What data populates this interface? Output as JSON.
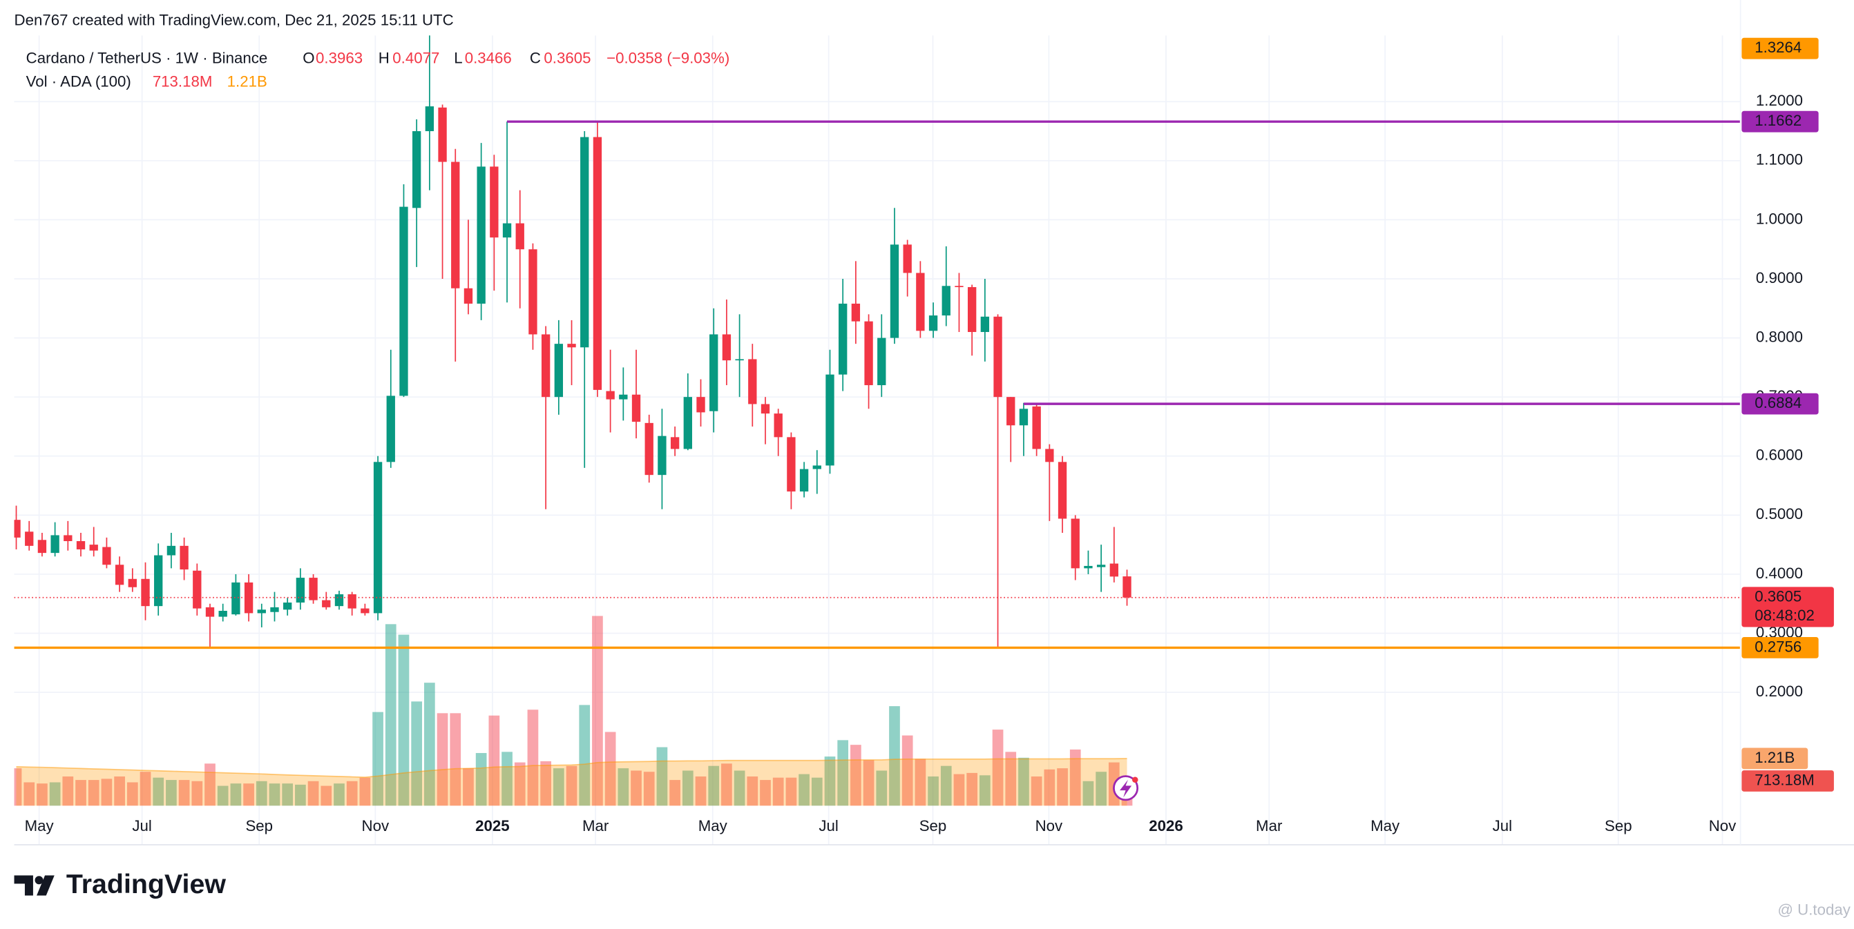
{
  "header": "Den767 created with TradingView.com, Dec 21, 2025 15:11 UTC",
  "brand": "TradingView",
  "watermark": "@ U.today",
  "chart_data": {
    "type": "candlestick",
    "symbol": "Cardano / TetherUS · 1W · Binance",
    "legend_keys": {
      "open": "O",
      "high": "H",
      "low": "L",
      "close": "C"
    },
    "change": "−0.0358 (−9.03%)",
    "volume_name": "Vol · ADA (100)",
    "open": [
      0.492,
      0.472,
      0.458,
      0.436,
      0.466,
      0.456,
      0.45,
      0.446,
      0.416,
      0.392,
      0.392,
      0.346,
      0.432,
      0.448,
      0.406,
      0.344,
      0.328,
      0.332,
      0.386,
      0.334,
      0.336,
      0.34,
      0.352,
      0.394,
      0.356,
      0.346,
      0.366,
      0.342,
      0.334,
      0.59,
      0.702,
      1.02,
      1.15,
      1.19,
      1.098,
      0.884,
      0.858,
      1.09,
      0.97,
      0.994,
      0.95,
      0.806,
      0.7,
      0.79,
      0.784,
      1.14,
      0.71,
      0.696,
      0.704,
      0.656,
      0.568,
      0.632,
      0.612,
      0.7,
      0.676,
      0.806,
      0.762,
      0.764,
      0.688,
      0.672,
      0.632,
      0.54,
      0.578,
      0.584,
      0.738,
      0.858,
      0.828,
      0.72,
      0.8,
      0.958,
      0.91,
      0.812,
      0.838,
      0.888,
      0.886,
      0.81,
      0.836,
      0.7,
      0.652,
      0.684,
      0.612,
      0.59,
      0.494,
      0.41,
      0.412,
      0.418,
      0.3963
    ],
    "high": [
      0.516,
      0.49,
      0.47,
      0.488,
      0.49,
      0.47,
      0.48,
      0.462,
      0.43,
      0.41,
      0.42,
      0.452,
      0.47,
      0.462,
      0.418,
      0.35,
      0.35,
      0.4,
      0.4,
      0.35,
      0.37,
      0.36,
      0.41,
      0.4,
      0.37,
      0.372,
      0.37,
      0.35,
      0.6,
      0.78,
      1.06,
      1.17,
      1.3264,
      1.195,
      1.12,
      1.0,
      1.13,
      1.11,
      1.1662,
      1.05,
      0.96,
      0.82,
      0.83,
      0.83,
      1.15,
      1.168,
      0.78,
      0.75,
      0.78,
      0.67,
      0.68,
      0.65,
      0.74,
      0.73,
      0.85,
      0.865,
      0.84,
      0.79,
      0.7,
      0.68,
      0.64,
      0.59,
      0.61,
      0.78,
      0.9,
      0.93,
      0.84,
      0.84,
      1.02,
      0.966,
      0.93,
      0.86,
      0.955,
      0.91,
      0.89,
      0.9,
      0.84,
      0.7,
      0.69,
      0.69,
      0.62,
      0.6,
      0.5,
      0.44,
      0.45,
      0.48,
      0.4077
    ],
    "low": [
      0.442,
      0.44,
      0.43,
      0.43,
      0.44,
      0.43,
      0.43,
      0.41,
      0.37,
      0.37,
      0.322,
      0.33,
      0.41,
      0.39,
      0.33,
      0.276,
      0.32,
      0.33,
      0.32,
      0.31,
      0.32,
      0.33,
      0.34,
      0.35,
      0.34,
      0.34,
      0.33,
      0.33,
      0.322,
      0.58,
      0.7,
      0.92,
      1.05,
      0.9,
      0.76,
      0.84,
      0.83,
      0.88,
      0.86,
      0.85,
      0.78,
      0.51,
      0.67,
      0.72,
      0.58,
      0.7,
      0.64,
      0.66,
      0.63,
      0.555,
      0.51,
      0.6,
      0.61,
      0.65,
      0.64,
      0.72,
      0.7,
      0.65,
      0.62,
      0.6,
      0.51,
      0.53,
      0.536,
      0.57,
      0.71,
      0.79,
      0.68,
      0.7,
      0.79,
      0.87,
      0.8,
      0.8,
      0.82,
      0.81,
      0.77,
      0.76,
      0.2756,
      0.59,
      0.6,
      0.6,
      0.49,
      0.47,
      0.39,
      0.4,
      0.37,
      0.386,
      0.3466
    ],
    "close": [
      0.462,
      0.448,
      0.436,
      0.466,
      0.456,
      0.442,
      0.44,
      0.416,
      0.382,
      0.378,
      0.346,
      0.432,
      0.448,
      0.408,
      0.342,
      0.328,
      0.338,
      0.386,
      0.334,
      0.34,
      0.344,
      0.352,
      0.394,
      0.356,
      0.344,
      0.366,
      0.342,
      0.334,
      0.59,
      0.702,
      1.022,
      1.15,
      1.192,
      1.098,
      0.884,
      0.858,
      1.09,
      0.97,
      0.994,
      0.95,
      0.806,
      0.7,
      0.79,
      0.784,
      1.14,
      0.712,
      0.696,
      0.704,
      0.658,
      0.568,
      0.634,
      0.612,
      0.7,
      0.674,
      0.806,
      0.762,
      0.764,
      0.688,
      0.672,
      0.632,
      0.54,
      0.578,
      0.584,
      0.738,
      0.858,
      0.828,
      0.72,
      0.8,
      0.958,
      0.91,
      0.812,
      0.838,
      0.888,
      0.886,
      0.81,
      0.836,
      0.7,
      0.652,
      0.68,
      0.612,
      0.59,
      0.494,
      0.41,
      0.414,
      0.416,
      0.396,
      0.3605
    ],
    "volume": [
      960000000,
      600000000,
      570000000,
      600000000,
      750000000,
      660000000,
      660000000,
      690000000,
      750000000,
      600000000,
      870000000,
      720000000,
      660000000,
      660000000,
      630000000,
      1080000000,
      510000000,
      570000000,
      570000000,
      630000000,
      570000000,
      570000000,
      540000000,
      630000000,
      510000000,
      570000000,
      630000000,
      720000000,
      2400000000,
      4650000000,
      4380000000,
      2670000000,
      3150000000,
      2370000000,
      2370000000,
      960000000,
      1350000000,
      2310000000,
      1380000000,
      1110000000,
      2460000000,
      1140000000,
      960000000,
      1020000000,
      2580000000,
      4860000000,
      1890000000,
      960000000,
      900000000,
      870000000,
      1500000000,
      660000000,
      900000000,
      750000000,
      1020000000,
      1080000000,
      900000000,
      750000000,
      660000000,
      720000000,
      720000000,
      810000000,
      720000000,
      1260000000,
      1680000000,
      1560000000,
      1170000000,
      900000000,
      2550000000,
      1800000000,
      1200000000,
      750000000,
      1020000000,
      810000000,
      840000000,
      780000000,
      1950000000,
      1380000000,
      1230000000,
      750000000,
      930000000,
      960000000,
      1440000000,
      630000000,
      870000000,
      1110000000,
      713180000
    ],
    "volume_ma": [
      1000000000,
      990000000,
      985000000,
      975000000,
      965000000,
      955000000,
      945000000,
      935000000,
      925000000,
      915000000,
      905000000,
      895000000,
      885000000,
      875000000,
      865000000,
      855000000,
      845000000,
      835000000,
      825000000,
      815000000,
      800000000,
      790000000,
      780000000,
      770000000,
      760000000,
      750000000,
      740000000,
      730000000,
      760000000,
      800000000,
      840000000,
      870000000,
      900000000,
      925000000,
      950000000,
      955000000,
      965000000,
      990000000,
      1000000000,
      1005000000,
      1030000000,
      1035000000,
      1040000000,
      1045000000,
      1065000000,
      1105000000,
      1120000000,
      1125000000,
      1130000000,
      1135000000,
      1145000000,
      1145000000,
      1150000000,
      1150000000,
      1155000000,
      1160000000,
      1160000000,
      1160000000,
      1160000000,
      1160000000,
      1160000000,
      1160000000,
      1160000000,
      1165000000,
      1170000000,
      1175000000,
      1175000000,
      1175000000,
      1190000000,
      1195000000,
      1195000000,
      1195000000,
      1195000000,
      1195000000,
      1195000000,
      1195000000,
      1200000000,
      1200000000,
      1200000000,
      1200000000,
      1200000000,
      1200000000,
      1205000000,
      1205000000,
      1205000000,
      1205000000,
      1210000000
    ],
    "volume_labels": {
      "86": "713.18M"
    },
    "volume_ma_labels": {
      "86": "1.21B"
    },
    "volume_lim": [
      0,
      20630000000
    ],
    "countdown": "08:48:02",
    "up_color": "#089981",
    "down_color": "#f23645",
    "ma_color": "#ff9800",
    "levels": [
      {
        "value": 1.3264,
        "color": "#ff9800"
      },
      {
        "value": 1.1662,
        "color": "#9c27b0",
        "start": 38
      },
      {
        "value": 0.6884,
        "color": "#9c27b0",
        "start": 78
      },
      {
        "value": 0.2756,
        "color": "#ff9800"
      }
    ],
    "xlim": [
      -0.16,
      133.5
    ],
    "xticks": [
      {
        "value": 1.77,
        "label": "May"
      },
      {
        "value": 9.74,
        "label": "Jul"
      },
      {
        "value": 18.81,
        "label": "Sep"
      },
      {
        "value": 27.8,
        "label": "Nov"
      },
      {
        "value": 36.87,
        "label": "2025"
      },
      {
        "value": 44.85,
        "label": "Mar"
      },
      {
        "value": 53.92,
        "label": "May"
      },
      {
        "value": 62.9,
        "label": "Jul"
      },
      {
        "value": 70.97,
        "label": "Sep"
      },
      {
        "value": 79.95,
        "label": "Nov"
      },
      {
        "value": 89.02,
        "label": "2026"
      },
      {
        "value": 97.0,
        "label": "Mar"
      },
      {
        "value": 105.98,
        "label": "May"
      },
      {
        "value": 115.06,
        "label": "Jul"
      },
      {
        "value": 124.04,
        "label": "Sep"
      },
      {
        "value": 132.1,
        "label": "Nov"
      }
    ],
    "ylim": [
      0.008,
      1.372
    ],
    "yticks": [
      {
        "value": 0.2,
        "label": "0.2000"
      },
      {
        "value": 0.3,
        "label": "0.3000"
      },
      {
        "value": 0.4,
        "label": "0.4000"
      },
      {
        "value": 0.5,
        "label": "0.5000"
      },
      {
        "value": 0.6,
        "label": "0.6000"
      },
      {
        "value": 0.7,
        "label": "0.7000"
      },
      {
        "value": 0.8,
        "label": "0.8000"
      },
      {
        "value": 0.9,
        "label": "0.9000"
      },
      {
        "value": 1.0,
        "label": "1.0000"
      },
      {
        "value": 1.1,
        "label": "1.1000"
      },
      {
        "value": 1.2,
        "label": "1.2000"
      }
    ],
    "grid": true
  }
}
